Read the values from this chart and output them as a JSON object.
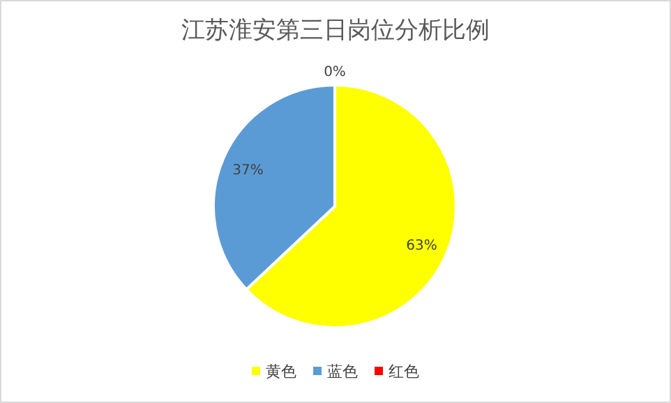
{
  "chart_data": {
    "type": "pie",
    "title": "江苏淮安第三日岗位分析比例",
    "categories": [
      "黄色",
      "蓝色",
      "红色"
    ],
    "values": [
      63,
      37,
      0
    ],
    "colors": [
      "#ffff00",
      "#5b9bd5",
      "#ff0000"
    ],
    "value_labels": [
      "63%",
      "37%",
      "0%"
    ],
    "legend": "bottom"
  }
}
